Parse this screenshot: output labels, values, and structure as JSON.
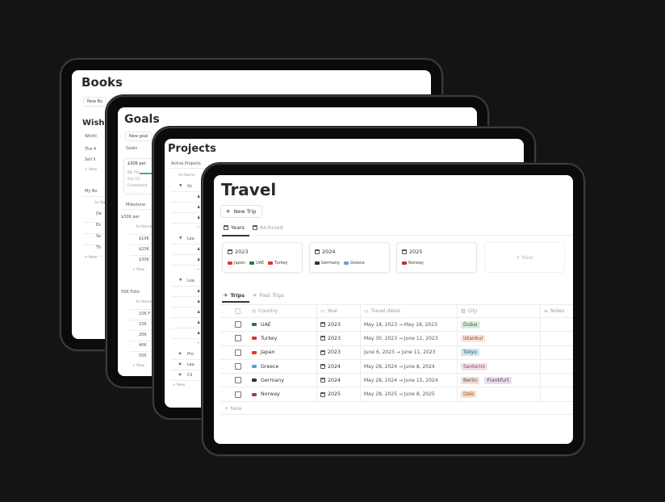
{
  "colors": {
    "background": "#141416",
    "bezel": "#0b0b0c"
  },
  "books": {
    "title": "Books",
    "new_button": "New Bo",
    "wishlist_heading": "Wishli",
    "wishlist_tab": "Wishli",
    "wishlist_items": [
      "The 4",
      "Sell li"
    ],
    "new": "+ New",
    "my_books_tab": "My Bo",
    "name_col": "Aa Na",
    "rows": [
      "De",
      "Ex",
      "Se",
      "Th"
    ]
  },
  "goals": {
    "title": "Goals",
    "new_button": "New goal",
    "goals_tab": "Goals",
    "card": {
      "title": "$30K per",
      "progress_label": "66.7%",
      "progress": 66.7,
      "date": "Oct 22",
      "status": "Completed"
    },
    "milestones_tab": "Milestone",
    "groups": [
      {
        "name": "$30K per",
        "rows": [
          "$10K",
          "$20K",
          "$30K"
        ]
      },
      {
        "name": "50K Follo",
        "rows": [
          "10K F",
          "15K",
          "20K",
          "40K",
          "50K"
        ]
      }
    ],
    "name_col": "Aa Name",
    "new": "+ New"
  },
  "projects": {
    "title": "Projects",
    "view_tab": "Active Projects",
    "name_col": "Aa Name",
    "groups": [
      {
        "name": "Gr",
        "rows": 3,
        "open": true
      },
      {
        "name": "Lea",
        "rows": 2,
        "open": true
      },
      {
        "name": "Lea",
        "rows": 5,
        "open": true
      },
      {
        "name": "Pro",
        "rows": 0,
        "open": false
      },
      {
        "name": "Lea",
        "rows": 0,
        "open": false
      },
      {
        "name": "Cli",
        "rows": 0,
        "open": false
      }
    ],
    "new": "+ New"
  },
  "travel": {
    "title": "Travel",
    "new_trip": "New Trip",
    "tabs": [
      "Years",
      "Archived"
    ],
    "cards": [
      {
        "year": "2023",
        "countries": [
          {
            "name": "Japan",
            "flag": "#e33"
          },
          {
            "name": "UAE",
            "flag": "#2a7a3a"
          },
          {
            "name": "Turkey",
            "flag": "#e03030"
          }
        ]
      },
      {
        "year": "2024",
        "countries": [
          {
            "name": "Germany",
            "flag": "#333"
          },
          {
            "name": "Greece",
            "flag": "#6d9bd6"
          }
        ]
      },
      {
        "year": "2025",
        "countries": [
          {
            "name": "Norway",
            "flag": "#b8323c"
          }
        ]
      }
    ],
    "new_card": "+ New",
    "table_tabs": [
      "Trips",
      "Past Trips"
    ],
    "columns": [
      "Country",
      "Year",
      "Travel dates",
      "City",
      "Notes"
    ],
    "rows": [
      {
        "country": "UAE",
        "flag": "#2a7a3a",
        "year": "2023",
        "dates": "May 18, 2023 → May 18, 2023",
        "cities": [
          {
            "name": "Dubai",
            "bg": "#dbeddb",
            "fg": "#2f5f35"
          }
        ]
      },
      {
        "country": "Turkey",
        "flag": "#e03030",
        "year": "2023",
        "dates": "May 30, 2023 → June 11, 2023",
        "cities": [
          {
            "name": "Istanbul",
            "bg": "#ffe2dd",
            "fg": "#8a3a2e"
          }
        ]
      },
      {
        "country": "Japan",
        "flag": "#e33",
        "year": "2023",
        "dates": "June 6, 2023 → June 11, 2023",
        "cities": [
          {
            "name": "Tokyo",
            "bg": "#d3e5ef",
            "fg": "#2b5a78"
          }
        ]
      },
      {
        "country": "Greece",
        "flag": "#6d9bd6",
        "year": "2024",
        "dates": "May 28, 2024 → June 8, 2024",
        "cities": [
          {
            "name": "Santorini",
            "bg": "#f5e0e9",
            "fg": "#7a3e58"
          }
        ]
      },
      {
        "country": "Germany",
        "flag": "#333",
        "year": "2024",
        "dates": "May 28, 2024 → June 15, 2024",
        "cities": [
          {
            "name": "Berlin",
            "bg": "#eee0da",
            "fg": "#6b4a3a"
          },
          {
            "name": "Frankfurt",
            "bg": "#e8deee",
            "fg": "#5a3e72"
          }
        ]
      },
      {
        "country": "Norway",
        "flag": "#b8323c",
        "year": "2025",
        "dates": "May 28, 2025 → June 8, 2025",
        "cities": [
          {
            "name": "Oslo",
            "bg": "#fadec9",
            "fg": "#7a4a22"
          }
        ]
      }
    ],
    "new_row": "+ New"
  }
}
